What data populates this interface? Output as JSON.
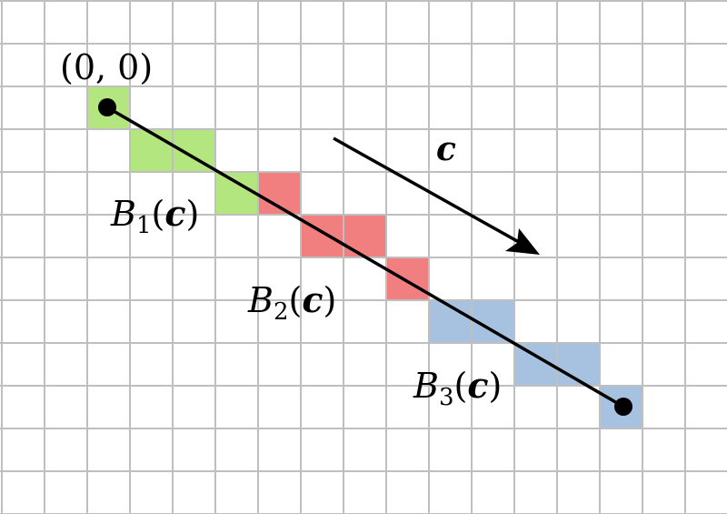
{
  "grid": {
    "cols": 17,
    "rows": 12,
    "line_color": "#bfbfbf"
  },
  "colors": {
    "green": "#b3e67f",
    "red": "#f27f7f",
    "blue": "#a6c2e0",
    "ink": "#000000"
  },
  "cells": {
    "green": [
      [
        2,
        2
      ],
      [
        3,
        3
      ],
      [
        4,
        3
      ],
      [
        5,
        4
      ]
    ],
    "red": [
      [
        6,
        4
      ],
      [
        7,
        5
      ],
      [
        8,
        5
      ],
      [
        9,
        6
      ]
    ],
    "blue": [
      [
        10,
        7
      ],
      [
        11,
        7
      ],
      [
        12,
        8
      ],
      [
        13,
        8
      ],
      [
        14,
        9
      ]
    ]
  },
  "origin_label": "(0, 0)",
  "vector_label": "c",
  "blocks": [
    {
      "base": "B",
      "sub": "1",
      "open": "(",
      "arg": "c",
      "close": ")"
    },
    {
      "base": "B",
      "sub": "2",
      "open": "(",
      "arg": "c",
      "close": ")"
    },
    {
      "base": "B",
      "sub": "3",
      "open": "(",
      "arg": "c",
      "close": ")"
    }
  ]
}
